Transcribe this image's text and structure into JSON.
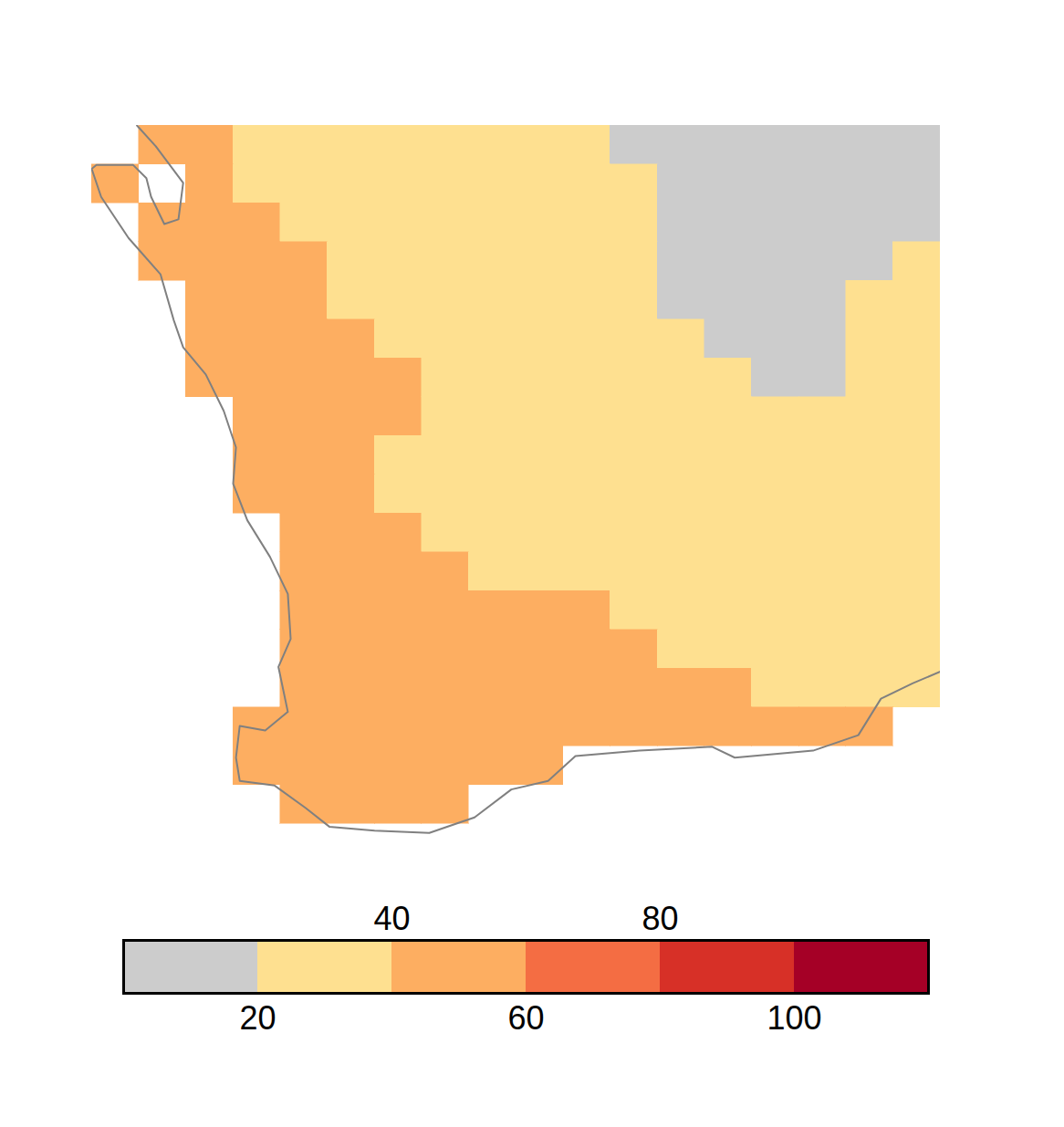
{
  "chart_data": {
    "type": "heatmap",
    "tick_labels": false,
    "xlim": [
      113.5,
      122.5
    ],
    "ylim": [
      -35.5,
      -25.5
    ],
    "cells": {
      "lon": [
        113.75,
        114.25,
        114.75,
        115.25,
        115.75,
        116.25,
        116.75,
        117.25,
        117.75,
        118.25,
        118.75,
        119.25,
        119.75,
        120.25,
        120.75,
        121.25,
        121.75,
        122.25
      ],
      "lat": [
        -25.75,
        -26.25,
        -26.75,
        -27.25,
        -27.75,
        -28.25,
        -28.75,
        -29.25,
        -29.75,
        -30.25,
        -30.75,
        -31.25,
        -31.75,
        -32.25,
        -32.75,
        -33.25,
        -33.75,
        -34.25
      ],
      "values": [
        [
          null,
          50,
          50,
          30,
          30,
          30,
          30,
          30,
          30,
          30,
          30,
          15,
          15,
          15,
          15,
          15,
          15,
          15
        ],
        [
          50,
          null,
          50,
          30,
          30,
          30,
          30,
          30,
          30,
          30,
          30,
          30,
          15,
          15,
          15,
          15,
          15,
          15
        ],
        [
          null,
          50,
          50,
          50,
          30,
          30,
          30,
          30,
          30,
          30,
          30,
          30,
          15,
          15,
          15,
          15,
          15,
          15
        ],
        [
          null,
          50,
          50,
          50,
          50,
          30,
          30,
          30,
          30,
          30,
          30,
          30,
          15,
          15,
          15,
          15,
          15,
          30
        ],
        [
          null,
          null,
          50,
          50,
          50,
          30,
          30,
          30,
          30,
          30,
          30,
          30,
          15,
          15,
          15,
          15,
          30,
          30
        ],
        [
          null,
          null,
          50,
          50,
          50,
          50,
          30,
          30,
          30,
          30,
          30,
          30,
          30,
          15,
          15,
          15,
          30,
          30
        ],
        [
          null,
          null,
          50,
          50,
          50,
          50,
          50,
          30,
          30,
          30,
          30,
          30,
          30,
          30,
          15,
          15,
          30,
          30
        ],
        [
          null,
          null,
          null,
          50,
          50,
          50,
          50,
          30,
          30,
          30,
          30,
          30,
          30,
          30,
          30,
          30,
          30,
          30
        ],
        [
          null,
          null,
          null,
          50,
          50,
          50,
          30,
          30,
          30,
          30,
          30,
          30,
          30,
          30,
          30,
          30,
          30,
          30
        ],
        [
          null,
          null,
          null,
          50,
          50,
          50,
          30,
          30,
          30,
          30,
          30,
          30,
          30,
          30,
          30,
          30,
          30,
          30
        ],
        [
          null,
          null,
          null,
          null,
          50,
          50,
          50,
          30,
          30,
          30,
          30,
          30,
          30,
          30,
          30,
          30,
          30,
          30
        ],
        [
          null,
          null,
          null,
          null,
          50,
          50,
          50,
          50,
          30,
          30,
          30,
          30,
          30,
          30,
          30,
          30,
          30,
          30
        ],
        [
          null,
          null,
          null,
          null,
          50,
          50,
          50,
          50,
          50,
          50,
          50,
          30,
          30,
          30,
          30,
          30,
          30,
          30
        ],
        [
          null,
          null,
          null,
          null,
          50,
          50,
          50,
          50,
          50,
          50,
          50,
          50,
          30,
          30,
          30,
          30,
          30,
          30
        ],
        [
          null,
          null,
          null,
          null,
          50,
          50,
          50,
          50,
          50,
          50,
          50,
          50,
          50,
          50,
          30,
          30,
          30,
          30
        ],
        [
          null,
          null,
          null,
          50,
          50,
          50,
          50,
          50,
          50,
          50,
          50,
          50,
          50,
          50,
          50,
          50,
          50,
          null
        ],
        [
          null,
          null,
          null,
          50,
          50,
          50,
          50,
          50,
          50,
          50,
          null,
          null,
          null,
          null,
          null,
          null,
          null,
          null
        ],
        [
          null,
          null,
          null,
          null,
          50,
          50,
          50,
          50,
          null,
          null,
          null,
          null,
          null,
          null,
          null,
          null,
          null,
          null
        ]
      ]
    },
    "coastline": [
      [
        113.98,
        -25.5
      ],
      [
        114.18,
        -25.77
      ],
      [
        114.47,
        -26.24
      ],
      [
        114.42,
        -26.71
      ],
      [
        114.27,
        -26.77
      ],
      [
        114.13,
        -26.42
      ],
      [
        114.08,
        -26.18
      ],
      [
        113.94,
        -26.01
      ],
      [
        113.55,
        -26.01
      ],
      [
        113.5,
        -26.06
      ],
      [
        113.6,
        -26.42
      ],
      [
        113.89,
        -26.95
      ],
      [
        114.23,
        -27.42
      ],
      [
        114.37,
        -28.01
      ],
      [
        114.47,
        -28.36
      ],
      [
        114.71,
        -28.71
      ],
      [
        114.9,
        -29.18
      ],
      [
        115.03,
        -29.65
      ],
      [
        115.0,
        -30.12
      ],
      [
        115.15,
        -30.59
      ],
      [
        115.39,
        -31.06
      ],
      [
        115.58,
        -31.54
      ],
      [
        115.61,
        -32.12
      ],
      [
        115.48,
        -32.48
      ],
      [
        115.58,
        -33.06
      ],
      [
        115.34,
        -33.3
      ],
      [
        115.07,
        -33.24
      ],
      [
        115.03,
        -33.65
      ],
      [
        115.07,
        -33.95
      ],
      [
        115.44,
        -34.01
      ],
      [
        115.77,
        -34.3
      ],
      [
        116.02,
        -34.54
      ],
      [
        116.5,
        -34.59
      ],
      [
        117.08,
        -34.62
      ],
      [
        117.56,
        -34.42
      ],
      [
        117.95,
        -34.06
      ],
      [
        118.34,
        -33.95
      ],
      [
        118.63,
        -33.63
      ],
      [
        119.31,
        -33.56
      ],
      [
        120.08,
        -33.51
      ],
      [
        120.32,
        -33.65
      ],
      [
        121.15,
        -33.56
      ],
      [
        121.63,
        -33.36
      ],
      [
        121.87,
        -32.89
      ],
      [
        122.21,
        -32.69
      ],
      [
        122.5,
        -32.54
      ]
    ],
    "colorbar": {
      "range": [
        0,
        120
      ],
      "ticks": [
        20,
        40,
        60,
        80,
        100
      ],
      "colors": [
        "#cccccc",
        "#fee090",
        "#fdae61",
        "#f46d43",
        "#d73027",
        "#a50026"
      ]
    }
  }
}
